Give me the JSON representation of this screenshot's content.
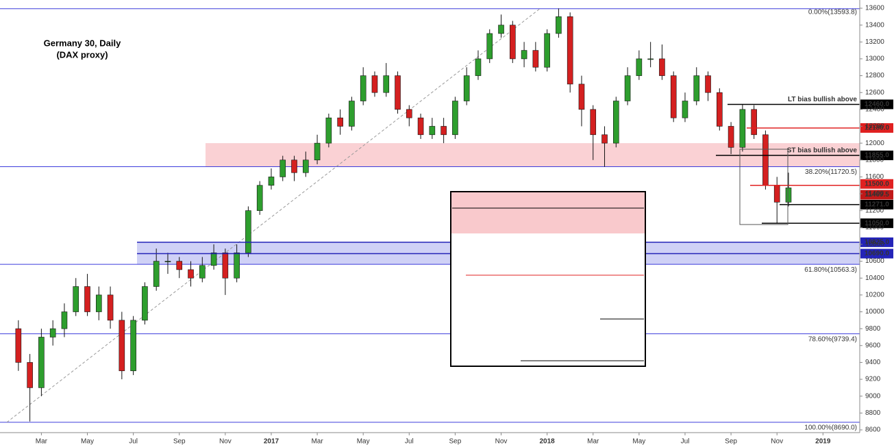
{
  "chart_data": {
    "type": "candlestick",
    "title": "Germany 30, Daily",
    "subtitle": "(DAX proxy)",
    "candles": {
      "color_up": "#2e9e2e",
      "color_down": "#d42020",
      "x": [
        1,
        1.5,
        2,
        2.5,
        3,
        3.5,
        4,
        4.5,
        5,
        5.5,
        6,
        6.5,
        7,
        7.5,
        8,
        8.5,
        9,
        9.5,
        10,
        10.5,
        11,
        11.5,
        12,
        12.5,
        13,
        13.5,
        14,
        14.5,
        15,
        15.5,
        16,
        16.5,
        17,
        17.5,
        18,
        18.5,
        19,
        19.5,
        20,
        20.5,
        21,
        21.5,
        22,
        22.5,
        23,
        23.5,
        24,
        24.5,
        25,
        25.5,
        26,
        26.5,
        27,
        27.5,
        28,
        28.5,
        29,
        29.5,
        30,
        30.5,
        31,
        31.5,
        32,
        32.5,
        33,
        33.5,
        34,
        34.5
      ],
      "open": [
        9800,
        9400,
        9100,
        9700,
        9800,
        10000,
        10300,
        10000,
        10200,
        9900,
        9300,
        9900,
        10300,
        10600,
        10600,
        10500,
        10400,
        10550,
        10700,
        10400,
        10700,
        11200,
        11500,
        11600,
        11800,
        11650,
        11800,
        12000,
        12300,
        12200,
        12500,
        12800,
        12600,
        12800,
        12400,
        12300,
        12100,
        12200,
        12100,
        12500,
        12800,
        13000,
        13300,
        13400,
        13000,
        13100,
        12900,
        13300,
        13500,
        12700,
        12400,
        12100,
        12000,
        12500,
        12800,
        13000,
        13000,
        12800,
        12300,
        12500,
        12800,
        12600,
        12200,
        11950,
        12400,
        12100,
        11500,
        11300
      ],
      "high": [
        9900,
        9500,
        9800,
        9900,
        10100,
        10400,
        10450,
        10300,
        10300,
        10000,
        9950,
        10350,
        10750,
        10700,
        10650,
        10600,
        10650,
        10800,
        10750,
        10800,
        11250,
        11550,
        11700,
        11850,
        11850,
        11900,
        12100,
        12350,
        12400,
        12550,
        12900,
        12850,
        12950,
        12850,
        12450,
        12350,
        12300,
        12300,
        12550,
        12900,
        13100,
        13350,
        13525,
        13450,
        13200,
        13200,
        13350,
        13597,
        13550,
        12800,
        12450,
        12200,
        12550,
        12900,
        13100,
        13200,
        13170,
        12850,
        12600,
        12900,
        12850,
        12650,
        12250,
        12460,
        12450,
        12150,
        11600,
        11650
      ],
      "low": [
        9300,
        8700,
        9000,
        9600,
        9700,
        9950,
        9950,
        9900,
        9800,
        9200,
        9250,
        9850,
        10250,
        10450,
        10400,
        10300,
        10350,
        10500,
        10200,
        10350,
        10650,
        11150,
        11450,
        11550,
        11550,
        11600,
        11750,
        11950,
        12100,
        12150,
        12450,
        12550,
        12550,
        12350,
        12200,
        12050,
        12050,
        12000,
        12050,
        12450,
        12750,
        12950,
        13250,
        12950,
        12900,
        12850,
        12850,
        13250,
        12600,
        12200,
        11800,
        11720,
        11950,
        12450,
        12750,
        12900,
        12750,
        12250,
        12250,
        12450,
        12500,
        12150,
        11870,
        11900,
        12050,
        11450,
        11050,
        11250
      ],
      "close": [
        9400,
        9100,
        9700,
        9800,
        10000,
        10300,
        10000,
        10200,
        9900,
        9300,
        9900,
        10300,
        10600,
        10600,
        10500,
        10400,
        10550,
        10700,
        10400,
        10700,
        11200,
        11500,
        11600,
        11800,
        11650,
        11800,
        12000,
        12300,
        12200,
        12500,
        12800,
        12600,
        12800,
        12400,
        12300,
        12100,
        12200,
        12100,
        12500,
        12800,
        13000,
        13300,
        13400,
        13000,
        13100,
        12900,
        13300,
        13500,
        12700,
        12400,
        12100,
        12000,
        12500,
        12800,
        13000,
        13000,
        12800,
        12300,
        12500,
        12800,
        12600,
        12200,
        11950,
        12400,
        12100,
        11500,
        11300,
        11470
      ]
    },
    "xlim": [
      0.2,
      37.6
    ],
    "xticks": [
      {
        "value": 2,
        "label": "Mar"
      },
      {
        "value": 4,
        "label": "May"
      },
      {
        "value": 6,
        "label": "Jul"
      },
      {
        "value": 8,
        "label": "Sep"
      },
      {
        "value": 10,
        "label": "Nov"
      },
      {
        "value": 12,
        "label": "2017"
      },
      {
        "value": 14,
        "label": "Mar"
      },
      {
        "value": 16,
        "label": "May"
      },
      {
        "value": 18,
        "label": "Jul"
      },
      {
        "value": 20,
        "label": "Sep"
      },
      {
        "value": 22,
        "label": "Nov"
      },
      {
        "value": 24,
        "label": "2018"
      },
      {
        "value": 26,
        "label": "Mar"
      },
      {
        "value": 28,
        "label": "May"
      },
      {
        "value": 30,
        "label": "Jul"
      },
      {
        "value": 32,
        "label": "Sep"
      },
      {
        "value": 34,
        "label": "Nov"
      },
      {
        "value": 36,
        "label": "2019"
      }
    ],
    "ylim": [
      8600,
      13600
    ],
    "yticks": [
      8600,
      8800,
      9000,
      9200,
      9400,
      9600,
      9800,
      10000,
      10200,
      10400,
      10600,
      10800,
      11000,
      11200,
      11400,
      11600,
      11800,
      12000,
      12200,
      12400,
      12600,
      12800,
      13000,
      13200,
      13400,
      13600
    ],
    "fib_levels": [
      {
        "value": 13593.8,
        "label": "0.00%(13593.8)"
      },
      {
        "value": 11720.5,
        "label": "38.20%(11720.5)"
      },
      {
        "value": 10563.3,
        "label": "61.80%(10563.3)"
      },
      {
        "value": 9739.4,
        "label": "78.60%(9739.4)"
      },
      {
        "value": 8690,
        "label": "100.00%(8690.0)"
      }
    ],
    "fib_color": "#3b3bdc",
    "zones": [
      {
        "from": 11720.5,
        "to": 12000,
        "color": "#f9c9cc"
      },
      {
        "from": 10563.3,
        "to": 10825,
        "color": "#c7c9f5"
      }
    ],
    "levels": [
      {
        "value": 12460,
        "label": "12460.0",
        "color": "#000000",
        "note": "LT bias bullish above"
      },
      {
        "value": 12180,
        "label": "12180.0",
        "color": "#e02020"
      },
      {
        "value": 11855,
        "label": "11855.0",
        "color": "#000000",
        "note": "ST bias bullish above"
      },
      {
        "value": 11500,
        "label": "11500.0",
        "color": "#e02020"
      },
      {
        "value": 11469.5,
        "label": "11469.5",
        "color": "#c01818"
      },
      {
        "value": 11271,
        "label": "11271.0",
        "color": "#000000"
      },
      {
        "value": 11050,
        "label": "11050.0",
        "color": "#000000"
      },
      {
        "value": 10825,
        "label": "10825.0",
        "color": "#2323b8"
      },
      {
        "value": 10690,
        "label": "10690.0",
        "color": "#2323b8"
      }
    ]
  }
}
